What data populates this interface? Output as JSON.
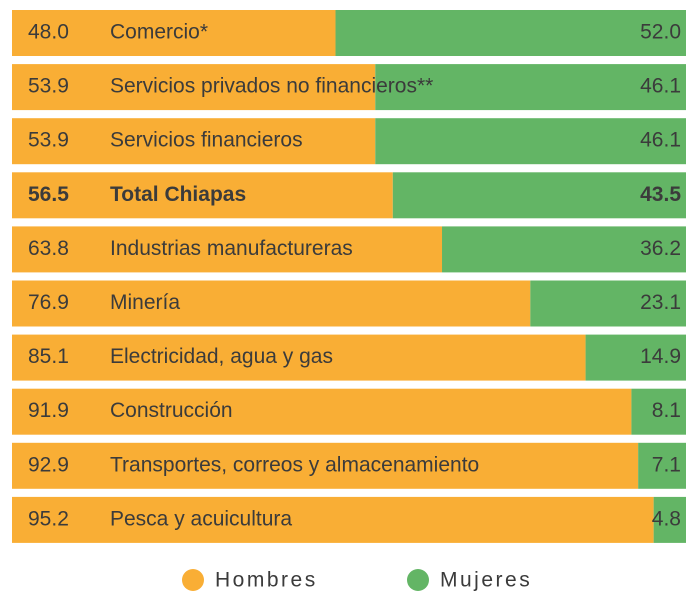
{
  "chart_data": {
    "type": "stacked_bar_horizontal",
    "categories": [
      "Comercio*",
      "Servicios privados no financieros**",
      "Servicios financieros",
      "Total Chiapas",
      "Industrias manufactureras",
      "Minería",
      "Electricidad, agua y gas",
      "Construcción",
      "Transportes, correos y almacenamiento",
      "Pesca y acuicultura"
    ],
    "series": [
      {
        "name": "Hombres",
        "color": "#f9ae35",
        "values": [
          48.0,
          53.9,
          53.9,
          56.5,
          63.8,
          76.9,
          85.1,
          91.9,
          92.9,
          95.2
        ],
        "value_labels": [
          "48.0",
          "53.9",
          "53.9",
          "56.5",
          "63.8",
          "76.9",
          "85.1",
          "91.9",
          "92.9",
          "95.2"
        ]
      },
      {
        "name": "Mujeres",
        "color": "#63b565",
        "values": [
          52.0,
          46.1,
          46.1,
          43.5,
          36.2,
          23.1,
          14.9,
          8.1,
          7.1,
          4.8
        ],
        "value_labels": [
          "52.0",
          "46.1",
          "46.1",
          "43.5",
          "36.2",
          "23.1",
          "14.9",
          "8.1",
          "7.1",
          "4.8"
        ]
      }
    ],
    "xlim": [
      0,
      100
    ],
    "emphasis": [
      3
    ],
    "legend": "bottom"
  }
}
